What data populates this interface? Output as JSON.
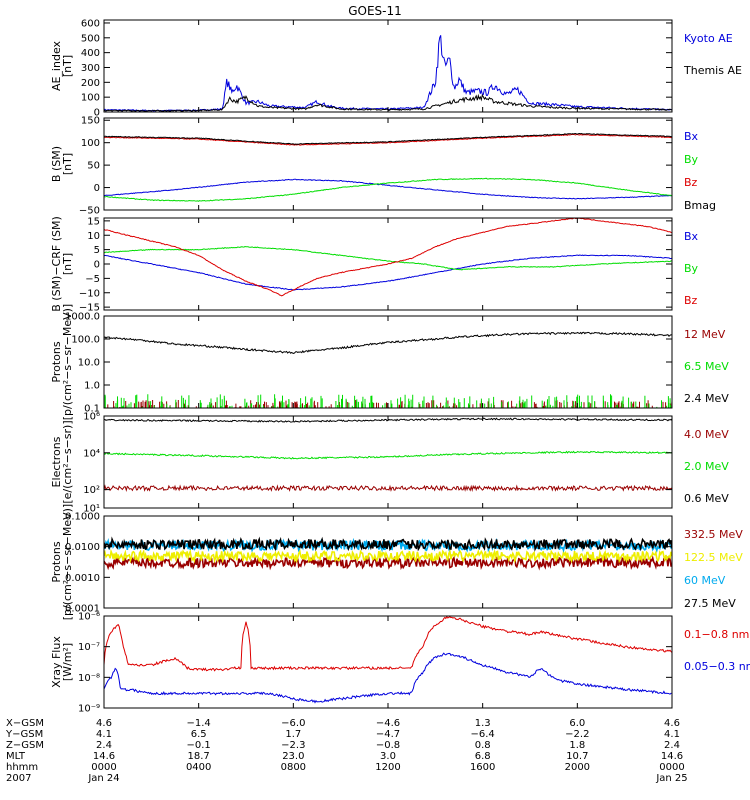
{
  "title": "GOES-11",
  "colors": {
    "black": "#000000",
    "blue": "#0000dd",
    "green": "#00dd00",
    "red": "#dd0000",
    "darkred": "#990000",
    "cyan": "#00aaee",
    "yellow": "#eeee00"
  },
  "chart_data": [
    {
      "type": "line",
      "ylabel": "AE_index\n[nT]",
      "ylim": [
        0,
        620
      ],
      "scale": "linear",
      "ticks": [
        "0",
        "100",
        "200",
        "300",
        "400",
        "500",
        "600"
      ],
      "tick_values": [
        0,
        100,
        200,
        300,
        400,
        500,
        600
      ],
      "series": [
        {
          "name": "Kyoto AE",
          "color": "blue",
          "x": [
            0,
            2,
            4,
            5,
            5.2,
            5.4,
            5.6,
            6,
            6.5,
            7,
            8.5,
            9,
            9.5,
            10,
            12,
            13.5,
            14,
            14.2,
            14.4,
            14.6,
            14.8,
            15,
            15.3,
            15.8,
            16.2,
            16.5,
            17,
            17.5,
            18,
            19,
            20,
            21,
            22,
            23,
            24
          ],
          "y": [
            15,
            10,
            12,
            20,
            210,
            130,
            180,
            60,
            70,
            40,
            30,
            70,
            40,
            25,
            20,
            30,
            200,
            510,
            300,
            350,
            160,
            220,
            130,
            140,
            130,
            180,
            120,
            150,
            60,
            50,
            35,
            30,
            25,
            20,
            15
          ]
        },
        {
          "name": "Themis AE",
          "color": "black",
          "x": [
            0,
            2,
            4,
            5,
            5.3,
            5.6,
            6,
            6.5,
            7,
            8.5,
            9,
            10,
            12,
            13.5,
            14,
            14.5,
            15,
            15.5,
            16,
            16.5,
            17,
            18,
            19,
            20,
            22,
            24
          ],
          "y": [
            10,
            8,
            10,
            15,
            90,
            70,
            100,
            40,
            30,
            20,
            50,
            20,
            15,
            20,
            40,
            60,
            80,
            90,
            100,
            70,
            60,
            40,
            30,
            25,
            20,
            15
          ]
        }
      ]
    },
    {
      "type": "line",
      "ylabel": "B (SM)\n[nT]",
      "ylim": [
        -50,
        155
      ],
      "scale": "linear",
      "ticks": [
        "−50",
        "0",
        "50",
        "100",
        "150"
      ],
      "tick_values": [
        -50,
        0,
        50,
        100,
        150
      ],
      "series": [
        {
          "name": "Bx",
          "color": "blue",
          "x": [
            0,
            3,
            6,
            8,
            10,
            12,
            14,
            16,
            18,
            20,
            22,
            24
          ],
          "y": [
            -18,
            -5,
            12,
            18,
            15,
            5,
            -5,
            -15,
            -22,
            -25,
            -22,
            -18
          ]
        },
        {
          "name": "By",
          "color": "green",
          "x": [
            0,
            2,
            4,
            6,
            8,
            10,
            12,
            14,
            16,
            18,
            20,
            22,
            24
          ],
          "y": [
            -20,
            -28,
            -30,
            -25,
            -15,
            0,
            10,
            18,
            20,
            18,
            10,
            -5,
            -18
          ]
        },
        {
          "name": "Bz",
          "color": "red",
          "x": [
            0,
            4,
            8,
            12,
            16,
            20,
            24
          ],
          "y": [
            112,
            108,
            95,
            100,
            110,
            118,
            112
          ]
        },
        {
          "name": "Bmag",
          "color": "black",
          "x": [
            0,
            4,
            8,
            12,
            16,
            20,
            24
          ],
          "y": [
            114,
            110,
            97,
            102,
            112,
            120,
            114
          ]
        }
      ]
    },
    {
      "type": "line",
      "ylabel": "B (SM)−CRF (SM)\n[nT]",
      "ylim": [
        -16,
        16
      ],
      "scale": "linear",
      "ticks": [
        "−15",
        "−10",
        "−5",
        "0",
        "5",
        "10",
        "15"
      ],
      "tick_values": [
        -15,
        -10,
        -5,
        0,
        5,
        10,
        15
      ],
      "series": [
        {
          "name": "Bx",
          "color": "blue",
          "x": [
            0,
            2,
            4,
            6,
            8,
            10,
            12,
            14,
            16,
            18,
            20,
            22,
            24
          ],
          "y": [
            3,
            0,
            -3,
            -7,
            -9,
            -8,
            -6,
            -3,
            0,
            2,
            3,
            3,
            2
          ]
        },
        {
          "name": "By",
          "color": "green",
          "x": [
            0,
            2,
            4,
            6,
            8,
            10,
            12,
            13.5,
            15,
            17,
            19,
            21,
            24
          ],
          "y": [
            4,
            5,
            5,
            6,
            5,
            3,
            1,
            0,
            -2,
            -1,
            -1,
            0,
            1
          ]
        },
        {
          "name": "Bz",
          "color": "red",
          "x": [
            0,
            1,
            2,
            3,
            4,
            5,
            6,
            7,
            7.5,
            8,
            9,
            10,
            12,
            13,
            14,
            15,
            16,
            17,
            18,
            19,
            20,
            21,
            22,
            23,
            24
          ],
          "y": [
            12,
            10,
            8,
            6,
            3,
            -2,
            -6,
            -9,
            -11,
            -9,
            -5,
            -3,
            0,
            2,
            6,
            9,
            11,
            13,
            14,
            15,
            16,
            15,
            14,
            13,
            11
          ]
        }
      ]
    },
    {
      "type": "line",
      "ylabel": "Protons\n[p/(cm²−s−sr−MeV)]",
      "ylim": [
        0.1,
        1000
      ],
      "scale": "log",
      "ticks": [
        "0.1",
        "1.0",
        "10.0",
        "100.0",
        "1000.0"
      ],
      "tick_values": [
        0.1,
        1,
        10,
        100,
        1000
      ],
      "series": [
        {
          "name": "12 MeV",
          "color": "darkred",
          "x": [
            0,
            24
          ],
          "y": [
            0.1,
            0.1
          ]
        },
        {
          "name": "6.5 MeV",
          "color": "green",
          "x": [
            0,
            24
          ],
          "y": [
            0.15,
            0.15
          ]
        },
        {
          "name": "2.4 MeV",
          "color": "black",
          "x": [
            0,
            3,
            6,
            8,
            10,
            12,
            14,
            16,
            18,
            20,
            22,
            24
          ],
          "y": [
            120,
            60,
            35,
            25,
            40,
            70,
            100,
            140,
            170,
            180,
            170,
            140
          ]
        }
      ]
    },
    {
      "type": "line",
      "ylabel": "Electrons\n[e/(cm²−s−sr)]",
      "ylim": [
        10,
        1000000
      ],
      "scale": "log",
      "ticks": [
        "10¹",
        "10²",
        "10⁴",
        "10⁶"
      ],
      "tick_values": [
        10,
        100,
        10000,
        1000000
      ],
      "series": [
        {
          "name": "4.0 MeV",
          "color": "darkred",
          "x": [
            0,
            24
          ],
          "y": [
            120,
            120
          ]
        },
        {
          "name": "2.0 MeV",
          "color": "green",
          "x": [
            0,
            4,
            8,
            12,
            16,
            20,
            24
          ],
          "y": [
            9000,
            7000,
            5000,
            6000,
            9000,
            11000,
            10000
          ]
        },
        {
          "name": "0.6 MeV",
          "color": "black",
          "x": [
            0,
            8,
            16,
            24
          ],
          "y": [
            600000,
            500000,
            700000,
            600000
          ]
        }
      ]
    },
    {
      "type": "line",
      "ylabel": "Protons\n[p/(cm²−s−sr−MeV)]",
      "ylim": [
        0.0001,
        0.1
      ],
      "scale": "log",
      "ticks": [
        "0.0001",
        "0.0010",
        "0.0100",
        "0.1000"
      ],
      "tick_values": [
        0.0001,
        0.001,
        0.01,
        0.1
      ],
      "series": [
        {
          "name": "332.5 MeV",
          "color": "darkred",
          "x": [
            0,
            24
          ],
          "y": [
            0.003,
            0.003
          ]
        },
        {
          "name": "122.5 MeV",
          "color": "yellow",
          "x": [
            0,
            24
          ],
          "y": [
            0.005,
            0.005
          ]
        },
        {
          "name": "60 MeV",
          "color": "cyan",
          "x": [
            0,
            24
          ],
          "y": [
            0.011,
            0.011
          ]
        },
        {
          "name": "27.5 MeV",
          "color": "black",
          "x": [
            0,
            24
          ],
          "y": [
            0.012,
            0.012
          ]
        }
      ]
    },
    {
      "type": "line",
      "ylabel": "Xray Flux\n[W/m²]",
      "ylim": [
        1e-09,
        1e-06
      ],
      "scale": "log",
      "ticks": [
        "10⁻⁹",
        "10⁻⁸",
        "10⁻⁷",
        "10⁻⁶"
      ],
      "tick_values": [
        1e-09,
        1e-08,
        1e-07,
        1e-06
      ],
      "series": [
        {
          "name": "0.1−0.8 nm",
          "color": "red",
          "x": [
            0,
            0.3,
            0.6,
            0.8,
            1,
            1.5,
            2,
            3,
            3.5,
            4,
            4.5,
            4.8,
            5,
            5.5,
            5.8,
            6,
            6.2,
            6.4,
            7,
            8,
            10,
            12,
            13,
            13.5,
            14,
            14.5,
            15,
            15.5,
            16,
            17,
            18,
            18.5,
            18.8,
            19.2,
            20,
            21,
            22,
            23,
            24
          ],
          "y": [
            2.5e-08,
            3e-07,
            5e-07,
            1e-07,
            2.5e-08,
            2.5e-08,
            2.5e-08,
            4e-08,
            2e-08,
            1.8e-08,
            1.8e-08,
            1.8e-08,
            1.8e-08,
            2e-08,
            2e-08,
            6e-07,
            2e-08,
            2e-08,
            2e-08,
            2e-08,
            2e-08,
            2e-08,
            2e-08,
            1e-07,
            5e-07,
            9e-07,
            8e-07,
            6e-07,
            4.5e-07,
            3.2e-07,
            2.5e-07,
            3e-07,
            2.7e-07,
            2.3e-07,
            1.8e-07,
            1.3e-07,
            1e-07,
            8e-08,
            7e-08
          ]
        },
        {
          "name": "0.05−0.3 nm",
          "color": "blue",
          "x": [
            0,
            0.3,
            0.5,
            0.7,
            1,
            2,
            3,
            4,
            5,
            5.8,
            6,
            6.2,
            7,
            8,
            9,
            10,
            12,
            13,
            13.5,
            14,
            14.5,
            15,
            15.5,
            16,
            17,
            18,
            18.5,
            18.8,
            19.2,
            20,
            22,
            24
          ],
          "y": [
            4e-09,
            1e-08,
            2e-08,
            4e-09,
            4e-09,
            3e-09,
            3e-09,
            3e-09,
            3e-09,
            3e-09,
            3e-09,
            3e-09,
            3e-09,
            2e-09,
            1.6e-09,
            2e-09,
            3e-09,
            3e-09,
            1.5e-08,
            4.5e-08,
            6e-08,
            5e-08,
            3.5e-08,
            2.5e-08,
            1.5e-08,
            1e-08,
            2e-08,
            1.2e-08,
            8e-09,
            6e-09,
            4e-09,
            3e-09
          ]
        }
      ]
    }
  ],
  "x_axis": {
    "xlim": [
      0,
      24
    ],
    "positions": [
      0,
      4,
      8,
      12,
      16,
      20,
      24
    ],
    "row_labels": [
      "X−GSM",
      "Y−GSM",
      "Z−GSM",
      "MLT",
      "hhmm",
      "2007"
    ],
    "columns": [
      [
        "4.6",
        "4.1",
        "2.4",
        "14.6",
        "0000",
        "Jan 24"
      ],
      [
        "−1.4",
        "6.5",
        "−0.1",
        "18.7",
        "0400",
        ""
      ],
      [
        "−6.0",
        "1.7",
        "−2.3",
        "23.0",
        "0800",
        ""
      ],
      [
        "−4.6",
        "−4.7",
        "−0.8",
        "3.0",
        "1200",
        ""
      ],
      [
        "1.3",
        "−6.4",
        "0.8",
        "6.8",
        "1600",
        ""
      ],
      [
        "6.0",
        "−2.2",
        "1.8",
        "10.7",
        "2000",
        ""
      ],
      [
        "4.6",
        "4.1",
        "2.4",
        "14.6",
        "0000",
        "Jan 25"
      ]
    ]
  }
}
